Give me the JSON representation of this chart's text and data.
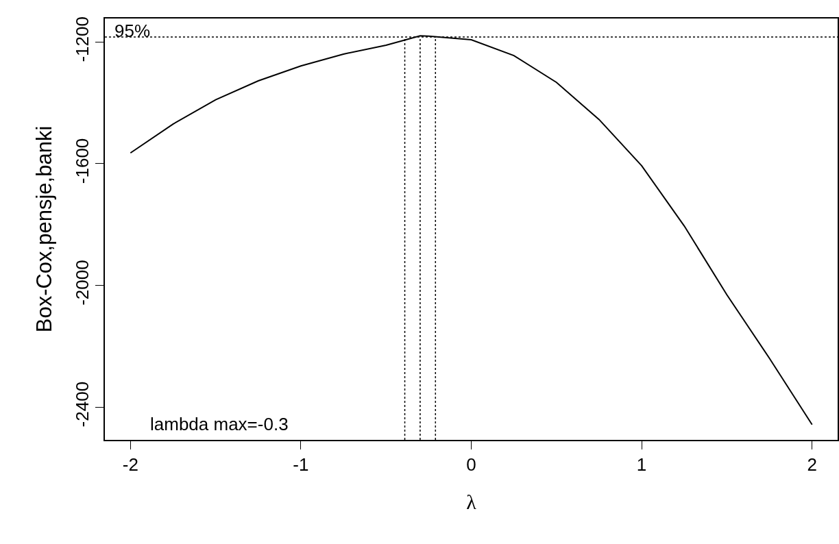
{
  "chart_data": {
    "type": "line",
    "xlabel": "λ",
    "ylabel": "Box-Cox,pensje,banki",
    "x": [
      -2,
      -1.75,
      -1.5,
      -1.25,
      -1,
      -0.75,
      -0.5,
      -0.3,
      -0.25,
      0,
      0.25,
      0.5,
      0.75,
      1,
      1.25,
      1.5,
      1.75,
      2
    ],
    "series": [
      {
        "color": "#000000",
        "values": [
          -1565,
          -1470,
          -1390,
          -1328,
          -1279,
          -1240,
          -1211,
          -1180,
          -1181,
          -1193,
          -1245,
          -1333,
          -1455,
          -1607,
          -1805,
          -2031,
          -2240,
          -2458
        ]
      }
    ],
    "xlim": [
      -2.15,
      2.15
    ],
    "ylim": [
      -2508,
      -1123
    ],
    "xticks": [
      -2,
      -1,
      0,
      1,
      2
    ],
    "yticks": [
      -2400,
      -2000,
      -1600,
      -1200
    ],
    "ref_lines": [
      {
        "axis": "y",
        "value": -1184,
        "line_style": "dotted",
        "color": "#000000"
      },
      {
        "axis": "x",
        "value": -0.39,
        "line_style": "dotted",
        "color": "#000000"
      },
      {
        "axis": "x",
        "value": -0.3,
        "line_style": "dotted",
        "color": "#000000"
      },
      {
        "axis": "x",
        "value": -0.21,
        "line_style": "dotted",
        "color": "#000000"
      }
    ],
    "annotations": [
      "lambda max=-0.3",
      {
        "text": "95%",
        "x": -2.1,
        "y": -1184
      }
    ],
    "grid": false,
    "marker": "none",
    "line_style": "solid"
  }
}
